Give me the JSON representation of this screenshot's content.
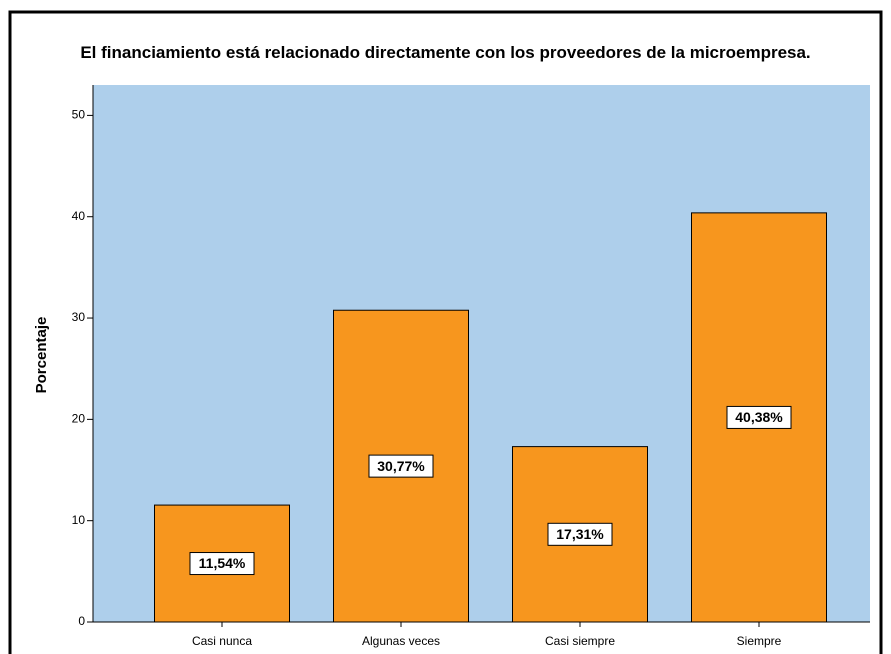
{
  "chart_data": {
    "type": "bar",
    "title": "El financiamiento está relacionado directamente con los proveedores de la microempresa.",
    "y_label": "Porcentaje",
    "categories": [
      "Casi nunca",
      "Algunas veces",
      "Casi siempre",
      "Siempre"
    ],
    "values": [
      11.54,
      30.77,
      17.31,
      40.38
    ],
    "value_labels": [
      "11,54%",
      "30,77%",
      "17,31%",
      "40,38%"
    ],
    "color": "#f7961e",
    "plot_background": "#aecfeb",
    "ylim": [
      0,
      53
    ],
    "yticks": [
      0,
      10,
      20,
      30,
      40,
      50
    ],
    "grid": false
  }
}
